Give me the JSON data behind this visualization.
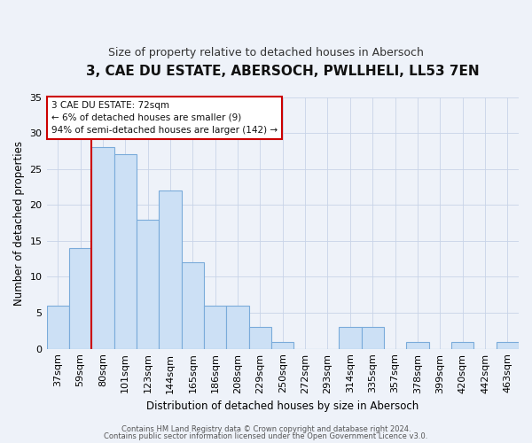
{
  "title": "3, CAE DU ESTATE, ABERSOCH, PWLLHELI, LL53 7EN",
  "subtitle": "Size of property relative to detached houses in Abersoch",
  "xlabel": "Distribution of detached houses by size in Abersoch",
  "ylabel": "Number of detached properties",
  "bar_labels": [
    "37sqm",
    "59sqm",
    "80sqm",
    "101sqm",
    "123sqm",
    "144sqm",
    "165sqm",
    "186sqm",
    "208sqm",
    "229sqm",
    "250sqm",
    "272sqm",
    "293sqm",
    "314sqm",
    "335sqm",
    "357sqm",
    "378sqm",
    "399sqm",
    "420sqm",
    "442sqm",
    "463sqm"
  ],
  "bar_values": [
    6,
    14,
    28,
    27,
    18,
    22,
    12,
    6,
    6,
    3,
    1,
    0,
    0,
    3,
    3,
    0,
    1,
    0,
    1,
    0,
    1
  ],
  "bar_color": "#cce0f5",
  "bar_edge_color": "#7aabda",
  "vline_color": "#cc0000",
  "ylim": [
    0,
    35
  ],
  "yticks": [
    0,
    5,
    10,
    15,
    20,
    25,
    30,
    35
  ],
  "annotation_line1": "3 CAE DU ESTATE: 72sqm",
  "annotation_line2": "← 6% of detached houses are smaller (9)",
  "annotation_line3": "94% of semi-detached houses are larger (142) →",
  "annotation_box_color": "#ffffff",
  "annotation_box_edge": "#cc0000",
  "footer1": "Contains HM Land Registry data © Crown copyright and database right 2024.",
  "footer2": "Contains public sector information licensed under the Open Government Licence v3.0.",
  "background_color": "#eef2f9",
  "plot_bg_color": "#eef2f9",
  "grid_color": "#c8d4e8",
  "title_fontsize": 11,
  "subtitle_fontsize": 9
}
